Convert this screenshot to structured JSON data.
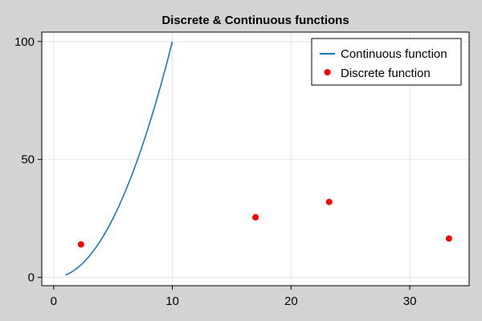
{
  "chart_data": {
    "type": "line",
    "title": "Discrete & Continuous functions",
    "xlabel": "",
    "ylabel": "",
    "xlim": [
      -1.0,
      35.0
    ],
    "ylim": [
      -3.5,
      104.0
    ],
    "xticks": [
      0,
      10,
      20,
      30
    ],
    "yticks": [
      0,
      50,
      100
    ],
    "grid": true,
    "legend_position": "top-right",
    "series": [
      {
        "name": "Continuous function",
        "kind": "line",
        "color": "#1f77b4",
        "x": [
          1,
          1.5,
          2,
          2.5,
          3,
          3.5,
          4,
          4.5,
          5,
          5.5,
          6,
          6.5,
          7,
          7.5,
          8,
          8.5,
          9,
          9.5,
          10
        ],
        "y": [
          1,
          2.25,
          4,
          6.25,
          9,
          12.25,
          16,
          20.25,
          25,
          30.25,
          36,
          42.25,
          49,
          56.25,
          64,
          72.25,
          81,
          90.25,
          100
        ]
      },
      {
        "name": "Discrete function",
        "kind": "scatter",
        "color": "#ff0000",
        "x": [
          2.3,
          17.0,
          23.2,
          33.3
        ],
        "y": [
          14.0,
          25.5,
          32.0,
          16.5
        ]
      }
    ]
  }
}
